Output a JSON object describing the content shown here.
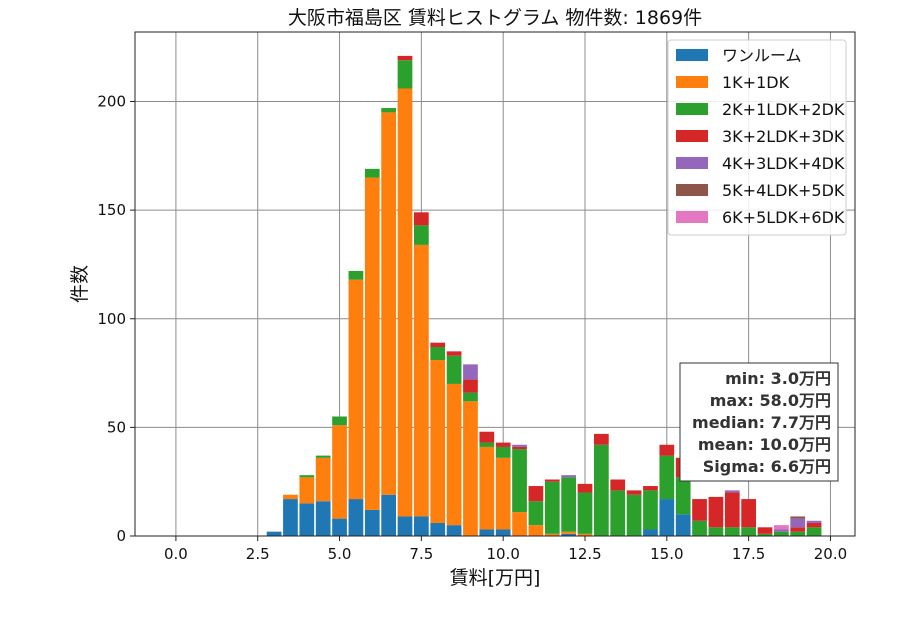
{
  "chart_data": {
    "type": "bar",
    "stacked": true,
    "title": "大阪市福島区 賃料ヒストグラム  物件数: 1869件",
    "xlabel": "賃料[万円]",
    "ylabel": "件数",
    "xlim": [
      -1.25,
      20.75
    ],
    "ylim": [
      0,
      232
    ],
    "xticks": [
      0.0,
      2.5,
      5.0,
      7.5,
      10.0,
      12.5,
      15.0,
      17.5,
      20.0
    ],
    "xtick_labels": [
      "0.0",
      "2.5",
      "5.0",
      "7.5",
      "10.0",
      "12.5",
      "15.0",
      "17.5",
      "20.0"
    ],
    "yticks": [
      0,
      50,
      100,
      150,
      200
    ],
    "ytick_labels": [
      "0",
      "50",
      "100",
      "150",
      "200"
    ],
    "grid": true,
    "legend_position": "top-right",
    "bin_width": 0.5,
    "bins": [
      3.0,
      3.5,
      4.0,
      4.5,
      5.0,
      5.5,
      6.0,
      6.5,
      7.0,
      7.5,
      8.0,
      8.5,
      9.0,
      9.5,
      10.0,
      10.5,
      11.0,
      11.5,
      12.0,
      12.5,
      13.0,
      13.5,
      14.0,
      14.5,
      15.0,
      15.5,
      16.0,
      16.5,
      17.0,
      17.5,
      18.0,
      18.5,
      19.0,
      19.5
    ],
    "series": [
      {
        "name": "ワンルーム",
        "color": "#1f77b4",
        "values": [
          2,
          17,
          15,
          16,
          8,
          17,
          12,
          19,
          9,
          9,
          6,
          5,
          0,
          3,
          3,
          0,
          0,
          0,
          1,
          0,
          0,
          0,
          0,
          3,
          17,
          10,
          0,
          0,
          0,
          0,
          0,
          0,
          0,
          0
        ]
      },
      {
        "name": "1K+1DK",
        "color": "#ff7f0e",
        "values": [
          0,
          2,
          12,
          20,
          43,
          101,
          153,
          176,
          197,
          125,
          75,
          65,
          62,
          38,
          33,
          11,
          5,
          1,
          1,
          1,
          0,
          0,
          0,
          0,
          0,
          0,
          0,
          0,
          0,
          0,
          0,
          0,
          0,
          0
        ]
      },
      {
        "name": "2K+1LDK+2DK",
        "color": "#2ca02c",
        "values": [
          0,
          0,
          1,
          1,
          4,
          4,
          4,
          2,
          13,
          9,
          6,
          13,
          4,
          2,
          5,
          29,
          11,
          24,
          25,
          19,
          42,
          21,
          19,
          18,
          20,
          17,
          7,
          4,
          4,
          4,
          1,
          2,
          2,
          4
        ]
      },
      {
        "name": "3K+2LDK+3DK",
        "color": "#d62728",
        "values": [
          0,
          0,
          0,
          0,
          0,
          0,
          0,
          0,
          2,
          6,
          2,
          2,
          6,
          5,
          2,
          1,
          7,
          1,
          0,
          4,
          5,
          5,
          2,
          2,
          5,
          9,
          10,
          14,
          16,
          13,
          3,
          0,
          2,
          2
        ]
      },
      {
        "name": "4K+3LDK+4DK",
        "color": "#9467bd",
        "values": [
          0,
          0,
          0,
          0,
          0,
          0,
          0,
          0,
          0,
          0,
          0,
          0,
          7,
          0,
          0,
          1,
          0,
          0,
          1,
          0,
          0,
          0,
          0,
          0,
          0,
          0,
          0,
          0,
          1,
          0,
          0,
          1,
          4,
          1
        ]
      },
      {
        "name": "5K+4LDK+5DK",
        "color": "#8c564b",
        "values": [
          0,
          0,
          0,
          0,
          0,
          0,
          0,
          0,
          0,
          0,
          0,
          0,
          0,
          0,
          0,
          0,
          0,
          0,
          0,
          0,
          0,
          0,
          0,
          0,
          0,
          0,
          0,
          0,
          0,
          0,
          0,
          0,
          1,
          0
        ]
      },
      {
        "name": "6K+5LDK+6DK",
        "color": "#e377c2",
        "values": [
          0,
          0,
          0,
          0,
          0,
          0,
          0,
          0,
          0,
          0,
          0,
          0,
          0,
          0,
          0,
          0,
          0,
          0,
          0,
          0,
          0,
          0,
          0,
          0,
          0,
          0,
          0,
          0,
          0,
          0,
          0,
          2,
          0,
          0
        ]
      }
    ],
    "stats_box": [
      "min: 3.0万円",
      "max: 58.0万円",
      "median: 7.7万円",
      "mean: 10.0万円",
      "Sigma: 6.6万円"
    ]
  }
}
